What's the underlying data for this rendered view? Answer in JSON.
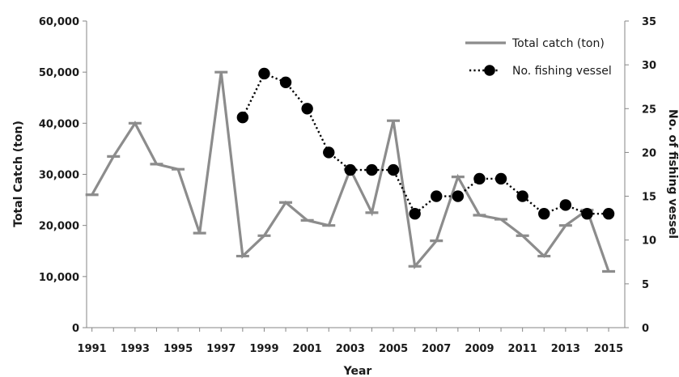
{
  "chart_data": {
    "type": "line",
    "title": "",
    "xlabel": "Year",
    "ylabel_left": "Total Catch (ton)",
    "ylabel_right": "No. of fishing vessel",
    "x": [
      1991,
      1992,
      1993,
      1994,
      1995,
      1996,
      1997,
      1998,
      1999,
      2000,
      2001,
      2002,
      2003,
      2004,
      2005,
      2006,
      2007,
      2008,
      2009,
      2010,
      2011,
      2012,
      2013,
      2014,
      2015
    ],
    "x_tick_labels": [
      "1991",
      "1993",
      "1995",
      "1997",
      "1999",
      "2001",
      "2003",
      "2005",
      "2007",
      "2009",
      "2011",
      "2013",
      "2015"
    ],
    "y_left_ticks": [
      "0",
      "10,000",
      "20,000",
      "30,000",
      "40,000",
      "50,000",
      "60,000"
    ],
    "y_right_ticks": [
      "0",
      "5",
      "10",
      "15",
      "20",
      "25",
      "30",
      "35"
    ],
    "ylim_left": [
      0,
      60000
    ],
    "ylim_right": [
      0,
      35
    ],
    "xlim": [
      1990.75,
      2015.75
    ],
    "grid": false,
    "legend_position": "top-right",
    "series": [
      {
        "name": "Total catch (ton)",
        "axis": "left",
        "style": "solid-line-dash-markers",
        "color": "#8c8c8c",
        "x": [
          1991,
          1992,
          1993,
          1994,
          1995,
          1996,
          1997,
          1998,
          1999,
          2000,
          2001,
          2002,
          2003,
          2004,
          2005,
          2006,
          2007,
          2008,
          2009,
          2010,
          2011,
          2012,
          2013,
          2014,
          2015
        ],
        "values": [
          26000,
          33500,
          40000,
          32000,
          31000,
          18500,
          50000,
          14000,
          18000,
          24500,
          21000,
          20000,
          31000,
          22500,
          40500,
          12000,
          17000,
          29500,
          22000,
          21200,
          18000,
          14000,
          20000,
          23000,
          11000
        ]
      },
      {
        "name": "No. fishing vessel",
        "axis": "right",
        "style": "dotted-line-circle-markers",
        "color": "#000000",
        "x": [
          1998,
          1999,
          2000,
          2001,
          2002,
          2003,
          2004,
          2005,
          2006,
          2007,
          2008,
          2009,
          2010,
          2011,
          2012,
          2013,
          2014,
          2015
        ],
        "values": [
          24,
          29,
          28,
          25,
          20,
          18,
          18,
          18,
          13,
          15,
          15,
          17,
          17,
          15,
          13,
          14,
          13,
          13
        ]
      }
    ]
  }
}
